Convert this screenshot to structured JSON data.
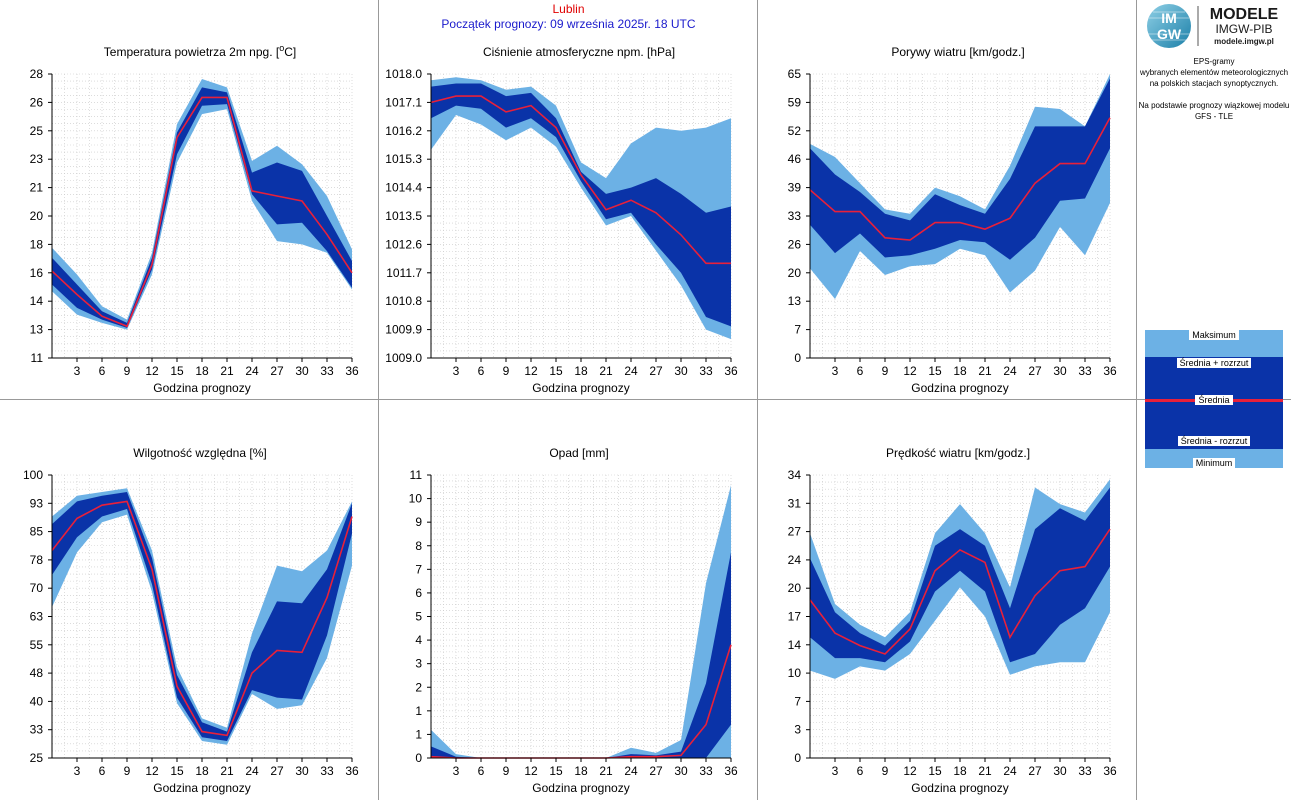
{
  "header": {
    "station": "Lublin",
    "forecast_start": "Początek prognozy: 09 września 2025r. 18 UTC"
  },
  "branding": {
    "logo_text": "IM GW",
    "brand_title": "MODELE",
    "brand_subtitle": "IMGW-PIB",
    "brand_url": "modele.imgw.pl"
  },
  "description": {
    "line1": "EPS-gramy",
    "line2": "wybranych elementów meteorologicznych",
    "line3": "na polskich stacjach  synoptycznych.",
    "line4": "Na podstawie prognozy wiązkowej modelu",
    "line5": "GFS - TLE"
  },
  "legend": {
    "max": "Maksimum",
    "mean_plus": "Średnia + rozrzut",
    "mean": "Średnia",
    "mean_minus": "Średnia - rozrzut",
    "min": "Minimum"
  },
  "colors": {
    "light_band": "#6cb1e5",
    "dark_band": "#0a33a8",
    "mean_line": "#e8203a",
    "grid": "#c8c8c8"
  },
  "chart_data": [
    {
      "type": "area",
      "title": "Temperatura powietrza 2m npg. [°C]",
      "xlabel": "Godzina prognozy",
      "x": [
        0,
        3,
        6,
        9,
        12,
        15,
        18,
        21,
        24,
        27,
        30,
        33,
        36
      ],
      "x_ticks": [
        "3",
        "6",
        "9",
        "12",
        "15",
        "18",
        "21",
        "24",
        "27",
        "30",
        "33",
        "36"
      ],
      "y_ticks": [
        "11",
        "13",
        "14",
        "16",
        "18",
        "20",
        "21",
        "23",
        "25",
        "26",
        "28"
      ],
      "ylim": [
        11,
        28
      ],
      "max": [
        17.6,
        16.0,
        14.1,
        13.3,
        17.3,
        25.0,
        27.7,
        27.2,
        22.8,
        23.7,
        22.6,
        20.7,
        17.5
      ],
      "mean_plus": [
        17.0,
        15.4,
        13.8,
        13.1,
        17.0,
        24.5,
        27.2,
        26.9,
        22.1,
        22.7,
        22.2,
        19.5,
        16.8
      ],
      "mean": [
        16.2,
        14.8,
        13.5,
        12.9,
        16.6,
        24.2,
        26.6,
        26.6,
        21.0,
        20.7,
        20.4,
        18.4,
        16.1
      ],
      "mean_minus": [
        15.4,
        14.0,
        13.3,
        12.8,
        16.3,
        23.2,
        26.1,
        26.2,
        20.8,
        19.0,
        19.1,
        17.4,
        15.2
      ],
      "min": [
        15.0,
        13.6,
        13.1,
        12.7,
        16.0,
        22.7,
        25.6,
        25.9,
        20.4,
        18.0,
        17.8,
        17.3,
        15.1
      ]
    },
    {
      "type": "area",
      "title": "Ciśnienie atmosferyczne npm. [hPa]",
      "xlabel": "Godzina prognozy",
      "x": [
        0,
        3,
        6,
        9,
        12,
        15,
        18,
        21,
        24,
        27,
        30,
        33,
        36
      ],
      "x_ticks": [
        "3",
        "6",
        "9",
        "12",
        "15",
        "18",
        "21",
        "24",
        "27",
        "30",
        "33",
        "36"
      ],
      "y_ticks": [
        "1009.0",
        "1009.9",
        "1010.8",
        "1011.7",
        "1012.6",
        "1013.5",
        "1014.4",
        "1015.3",
        "1016.2",
        "1017.1",
        "1018.0"
      ],
      "ylim": [
        1009.0,
        1018.0
      ],
      "max": [
        1017.8,
        1017.9,
        1017.8,
        1017.5,
        1017.6,
        1017.0,
        1015.2,
        1014.7,
        1015.8,
        1016.3,
        1016.2,
        1016.3,
        1016.6
      ],
      "mean_plus": [
        1017.6,
        1017.7,
        1017.7,
        1017.3,
        1017.4,
        1016.6,
        1014.9,
        1014.2,
        1014.4,
        1014.7,
        1014.2,
        1013.6,
        1013.8
      ],
      "mean": [
        1017.1,
        1017.3,
        1017.3,
        1016.8,
        1017.0,
        1016.3,
        1014.8,
        1013.7,
        1014.0,
        1013.6,
        1012.9,
        1012.0,
        1012.0
      ],
      "mean_minus": [
        1016.6,
        1017.0,
        1016.9,
        1016.3,
        1016.6,
        1016.0,
        1014.6,
        1013.4,
        1013.6,
        1012.6,
        1011.7,
        1010.3,
        1010.0
      ],
      "min": [
        1015.6,
        1016.7,
        1016.4,
        1015.9,
        1016.3,
        1015.7,
        1014.4,
        1013.2,
        1013.5,
        1012.4,
        1011.3,
        1009.9,
        1009.6
      ]
    },
    {
      "type": "area",
      "title": "Porywy wiatru [km/godz.]",
      "xlabel": "Godzina prognozy",
      "x": [
        0,
        3,
        6,
        9,
        12,
        15,
        18,
        21,
        24,
        27,
        30,
        33,
        36
      ],
      "x_ticks": [
        "3",
        "6",
        "9",
        "12",
        "15",
        "18",
        "21",
        "24",
        "27",
        "30",
        "33",
        "36"
      ],
      "y_ticks": [
        "0",
        "7",
        "13",
        "20",
        "26",
        "33",
        "39",
        "46",
        "52",
        "59",
        "65"
      ],
      "ylim": [
        0,
        65
      ],
      "max": [
        49.0,
        46.0,
        40.0,
        34.0,
        33.0,
        39.0,
        37.0,
        34.0,
        44.0,
        57.5,
        57.0,
        53.0,
        65.0
      ],
      "mean_plus": [
        48.0,
        42.0,
        38.0,
        33.0,
        31.5,
        37.5,
        35.0,
        33.0,
        41.0,
        53.0,
        53.0,
        53.0,
        64.0
      ],
      "mean": [
        38.5,
        33.5,
        33.5,
        27.5,
        27.0,
        31.0,
        31.0,
        29.5,
        32.0,
        40.0,
        44.5,
        44.5,
        55.0
      ],
      "mean_minus": [
        30.5,
        24.0,
        28.5,
        23.0,
        23.5,
        25.0,
        27.0,
        26.5,
        22.5,
        27.5,
        36.0,
        36.5,
        48.0
      ],
      "min": [
        20.5,
        13.5,
        24.5,
        19.0,
        21.0,
        21.5,
        25.0,
        23.5,
        15.0,
        20.0,
        30.0,
        23.5,
        35.5
      ]
    },
    {
      "type": "area",
      "title": "Wilgotność względna [%]",
      "xlabel": "Godzina prognozy",
      "x": [
        0,
        3,
        6,
        9,
        12,
        15,
        18,
        21,
        24,
        27,
        30,
        33,
        36
      ],
      "x_ticks": [
        "3",
        "6",
        "9",
        "12",
        "15",
        "18",
        "21",
        "24",
        "27",
        "30",
        "33",
        "36"
      ],
      "y_ticks": [
        "25",
        "33",
        "40",
        "48",
        "55",
        "63",
        "70",
        "78",
        "85",
        "93",
        "100"
      ],
      "ylim": [
        25,
        100
      ],
      "max": [
        89.0,
        94.5,
        95.5,
        96.5,
        80.0,
        49.0,
        35.5,
        33.0,
        58.0,
        76.0,
        74.5,
        80.0,
        93.0
      ],
      "mean_plus": [
        87.0,
        93.0,
        94.5,
        95.5,
        78.0,
        47.0,
        34.5,
        32.0,
        53.0,
        66.5,
        66.0,
        75.0,
        92.5
      ],
      "mean": [
        80.0,
        88.5,
        92.0,
        93.0,
        75.0,
        44.0,
        32.0,
        31.0,
        47.5,
        53.5,
        53.0,
        67.5,
        89.0
      ],
      "mean_minus": [
        73.5,
        83.5,
        89.0,
        91.0,
        71.0,
        41.0,
        30.5,
        29.5,
        43.0,
        41.0,
        40.5,
        57.5,
        84.5
      ],
      "min": [
        65.0,
        79.5,
        87.5,
        89.5,
        69.0,
        39.5,
        29.5,
        28.5,
        42.0,
        38.0,
        39.0,
        51.5,
        76.0
      ]
    },
    {
      "type": "area",
      "title": "Opad [mm]",
      "xlabel": "Godzina prognozy",
      "x": [
        0,
        3,
        6,
        9,
        12,
        15,
        18,
        21,
        24,
        27,
        30,
        33,
        36
      ],
      "x_ticks": [
        "3",
        "6",
        "9",
        "12",
        "15",
        "18",
        "21",
        "24",
        "27",
        "30",
        "33",
        "36"
      ],
      "y_ticks": [
        "0",
        "1",
        "1",
        "2",
        "3",
        "4",
        "5",
        "6",
        "7",
        "8",
        "9",
        "10",
        "11"
      ],
      "ylim": [
        0,
        11
      ],
      "max": [
        1.1,
        0.15,
        0.0,
        0.0,
        0.0,
        0.0,
        0.0,
        0.0,
        0.4,
        0.2,
        0.7,
        6.8,
        10.6
      ],
      "mean_plus": [
        0.45,
        0.05,
        0.0,
        0.0,
        0.0,
        0.0,
        0.0,
        0.0,
        0.15,
        0.1,
        0.25,
        2.9,
        8.0
      ],
      "mean": [
        0.05,
        0.0,
        0.0,
        0.0,
        0.0,
        0.0,
        0.0,
        0.0,
        0.05,
        0.05,
        0.1,
        1.3,
        4.4
      ],
      "mean_minus": [
        0.0,
        0.0,
        0.0,
        0.0,
        0.0,
        0.0,
        0.0,
        0.0,
        0.0,
        0.0,
        0.0,
        0.0,
        1.3
      ],
      "min": [
        0.0,
        0.0,
        0.0,
        0.0,
        0.0,
        0.0,
        0.0,
        0.0,
        0.0,
        0.0,
        0.0,
        0.0,
        0.0
      ]
    },
    {
      "type": "area",
      "title": "Prędkość wiatru [km/godz.]",
      "xlabel": "Godzina prognozy",
      "x": [
        0,
        3,
        6,
        9,
        12,
        15,
        18,
        21,
        24,
        27,
        30,
        33,
        36
      ],
      "x_ticks": [
        "3",
        "6",
        "9",
        "12",
        "15",
        "18",
        "21",
        "24",
        "27",
        "30",
        "33",
        "36"
      ],
      "y_ticks": [
        "0",
        "3",
        "7",
        "10",
        "14",
        "17",
        "20",
        "24",
        "27",
        "31",
        "34"
      ],
      "ylim": [
        0,
        34
      ],
      "max": [
        27.0,
        18.5,
        16.0,
        14.5,
        17.5,
        27.0,
        30.5,
        27.0,
        20.5,
        32.5,
        30.5,
        29.5,
        33.5
      ],
      "mean_plus": [
        24.0,
        17.5,
        15.0,
        13.5,
        16.5,
        25.5,
        27.5,
        25.5,
        18.0,
        27.5,
        30.0,
        28.5,
        32.5
      ],
      "mean": [
        19.0,
        15.0,
        13.5,
        12.5,
        15.5,
        22.5,
        25.0,
        23.5,
        14.5,
        19.5,
        22.5,
        23.0,
        27.5
      ],
      "mean_minus": [
        14.5,
        12.0,
        12.0,
        11.5,
        14.0,
        20.0,
        22.5,
        20.0,
        11.5,
        12.5,
        16.0,
        18.0,
        23.0
      ],
      "min": [
        10.5,
        9.5,
        11.0,
        10.5,
        12.5,
        16.5,
        20.5,
        17.0,
        10.0,
        11.0,
        11.5,
        11.5,
        17.5
      ]
    }
  ]
}
